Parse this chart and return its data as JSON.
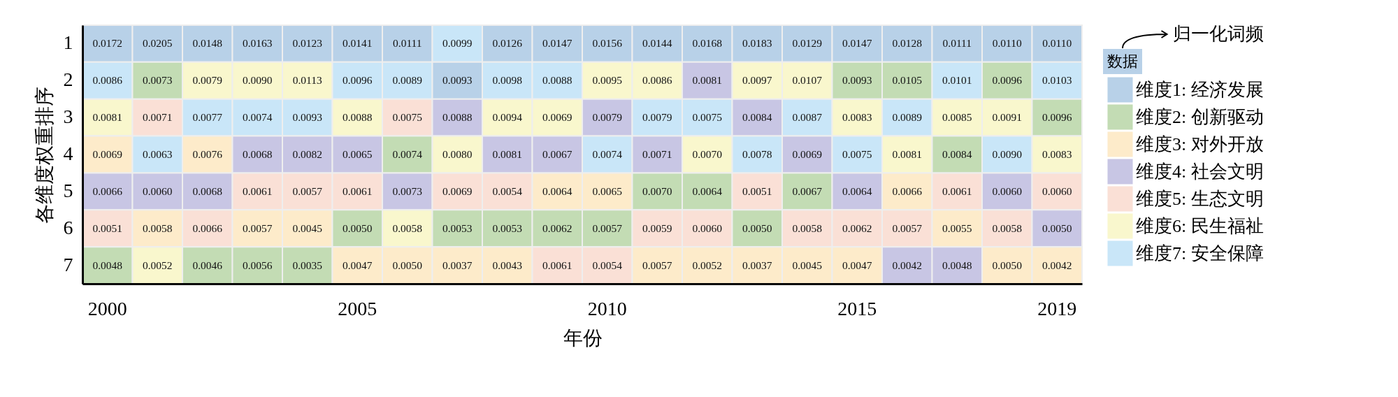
{
  "chart_data": {
    "type": "heatmap",
    "xlabel": "年份",
    "ylabel": "各维度权重排序",
    "legend_title": "归一化词频",
    "legend": "right",
    "data_labels": true,
    "annotations": [
      "数据"
    ],
    "categories": [
      "2000",
      null,
      null,
      null,
      null,
      "2005",
      null,
      null,
      null,
      null,
      "2010",
      null,
      null,
      null,
      null,
      "2015",
      null,
      null,
      null,
      "2019"
    ],
    "y_categories": [
      "1",
      "2",
      "3",
      "4",
      "5",
      "6",
      "7"
    ],
    "series": [
      {
        "name": "维度1: 经济发展",
        "color": "#b8d1e8",
        "values": [
          null,
          null,
          null,
          null,
          null,
          null,
          null,
          null,
          null,
          null,
          null,
          null,
          null,
          null,
          null,
          null,
          null,
          null,
          null,
          null
        ]
      },
      {
        "name": "维度2: 创新驱动",
        "color": "#c3dcb4",
        "values": [
          null,
          null,
          null,
          null,
          null,
          null,
          null,
          null,
          null,
          null,
          null,
          null,
          null,
          null,
          null,
          null,
          null,
          null,
          null,
          null
        ]
      },
      {
        "name": "维度3: 对外开放",
        "color": "#fdebca",
        "values": [
          null,
          null,
          null,
          null,
          null,
          null,
          null,
          null,
          null,
          null,
          null,
          null,
          null,
          null,
          null,
          null,
          null,
          null,
          null,
          null
        ]
      },
      {
        "name": "维度4: 社会文明",
        "color": "#c8c6e4",
        "values": [
          null,
          null,
          null,
          null,
          null,
          null,
          null,
          null,
          null,
          null,
          null,
          null,
          null,
          null,
          null,
          null,
          null,
          null,
          null,
          null
        ]
      },
      {
        "name": "维度5: 生态文明",
        "color": "#fae0d6",
        "values": [
          null,
          null,
          null,
          null,
          null,
          null,
          null,
          null,
          null,
          null,
          null,
          null,
          null,
          null,
          null,
          null,
          null,
          null,
          null,
          null
        ]
      },
      {
        "name": "维度6: 民生福祉",
        "color": "#f9f7cd",
        "values": [
          null,
          null,
          null,
          null,
          null,
          null,
          null,
          null,
          null,
          null,
          null,
          null,
          null,
          null,
          null,
          null,
          null,
          null,
          null,
          null
        ]
      },
      {
        "name": "维度7: 安全保障",
        "color": "#c9e6f8",
        "values": [
          null,
          null,
          null,
          null,
          null,
          null,
          null,
          null,
          null,
          null,
          null,
          null,
          null,
          null,
          null,
          null,
          null,
          null,
          null,
          null
        ]
      }
    ],
    "colors": [
      [
        "#b8d1e8",
        "#b8d1e8",
        "#b8d1e8",
        "#b8d1e8",
        "#b8d1e8",
        "#b8d1e8",
        "#b8d1e8",
        "#c9e6f8",
        "#b8d1e8",
        "#b8d1e8",
        "#b8d1e8",
        "#b8d1e8",
        "#b8d1e8",
        "#b8d1e8",
        "#b8d1e8",
        "#b8d1e8",
        "#b8d1e8",
        "#b8d1e8",
        "#b8d1e8",
        "#b8d1e8"
      ],
      [
        "#c9e6f8",
        "#c3dcb4",
        "#f9f7cd",
        "#f9f7cd",
        "#f9f7cd",
        "#c9e6f8",
        "#c9e6f8",
        "#b8d1e8",
        "#c9e6f8",
        "#c9e6f8",
        "#f9f7cd",
        "#f9f7cd",
        "#c8c6e4",
        "#f9f7cd",
        "#f9f7cd",
        "#c3dcb4",
        "#c3dcb4",
        "#c9e6f8",
        "#c3dcb4",
        "#c9e6f8"
      ],
      [
        "#f9f7cd",
        "#fae0d6",
        "#c9e6f8",
        "#c9e6f8",
        "#c9e6f8",
        "#f9f7cd",
        "#fae0d6",
        "#c8c6e4",
        "#f9f7cd",
        "#f9f7cd",
        "#c8c6e4",
        "#c9e6f8",
        "#c9e6f8",
        "#c8c6e4",
        "#c9e6f8",
        "#f9f7cd",
        "#c9e6f8",
        "#f9f7cd",
        "#f9f7cd",
        "#c3dcb4"
      ],
      [
        "#fdebca",
        "#c9e6f8",
        "#fdebca",
        "#c8c6e4",
        "#c8c6e4",
        "#c8c6e4",
        "#c3dcb4",
        "#f9f7cd",
        "#c8c6e4",
        "#c8c6e4",
        "#c9e6f8",
        "#c8c6e4",
        "#f9f7cd",
        "#c9e6f8",
        "#c8c6e4",
        "#c9e6f8",
        "#f9f7cd",
        "#c3dcb4",
        "#c9e6f8",
        "#f9f7cd"
      ],
      [
        "#c8c6e4",
        "#c8c6e4",
        "#c8c6e4",
        "#fae0d6",
        "#fae0d6",
        "#fae0d6",
        "#c8c6e4",
        "#fae0d6",
        "#fae0d6",
        "#fdebca",
        "#fdebca",
        "#c3dcb4",
        "#c3dcb4",
        "#fae0d6",
        "#c3dcb4",
        "#c8c6e4",
        "#fdebca",
        "#fae0d6",
        "#c8c6e4",
        "#fae0d6"
      ],
      [
        "#fae0d6",
        "#fdebca",
        "#fae0d6",
        "#fdebca",
        "#fdebca",
        "#c3dcb4",
        "#f9f7cd",
        "#c3dcb4",
        "#c3dcb4",
        "#c3dcb4",
        "#c3dcb4",
        "#fae0d6",
        "#fae0d6",
        "#c3dcb4",
        "#fae0d6",
        "#fae0d6",
        "#fae0d6",
        "#fdebca",
        "#fae0d6",
        "#c8c6e4"
      ],
      [
        "#c3dcb4",
        "#f9f7cd",
        "#c3dcb4",
        "#c3dcb4",
        "#c3dcb4",
        "#fdebca",
        "#fdebca",
        "#fdebca",
        "#fdebca",
        "#fae0d6",
        "#fae0d6",
        "#fdebca",
        "#fdebca",
        "#fdebca",
        "#fdebca",
        "#fdebca",
        "#c8c6e4",
        "#c8c6e4",
        "#fdebca",
        "#fdebca"
      ]
    ],
    "cells": [
      [
        0.0172,
        0.0205,
        0.0148,
        0.0163,
        0.0123,
        0.0141,
        0.0111,
        0.0099,
        0.0126,
        0.0147,
        0.0156,
        0.0144,
        0.0168,
        0.0183,
        0.0129,
        0.0147,
        0.0128,
        0.0111,
        0.011,
        0.011
      ],
      [
        0.0086,
        0.0073,
        0.0079,
        0.009,
        0.0113,
        0.0096,
        0.0089,
        0.0093,
        0.0098,
        0.0088,
        0.0095,
        0.0086,
        0.0081,
        0.0097,
        0.0107,
        0.0093,
        0.0105,
        0.0101,
        0.0096,
        0.0103
      ],
      [
        0.0081,
        0.0071,
        0.0077,
        0.0074,
        0.0093,
        0.0088,
        0.0075,
        0.0088,
        0.0094,
        0.0069,
        0.0079,
        0.0079,
        0.0075,
        0.0084,
        0.0087,
        0.0083,
        0.0089,
        0.0085,
        0.0091,
        0.0096
      ],
      [
        0.0069,
        0.0063,
        0.0076,
        0.0068,
        0.0082,
        0.0065,
        0.0074,
        0.008,
        0.0081,
        0.0067,
        0.0074,
        0.0071,
        0.007,
        0.0078,
        0.0069,
        0.0075,
        0.0081,
        0.0084,
        0.009,
        0.0083
      ],
      [
        0.0066,
        0.006,
        0.0068,
        0.0061,
        0.0057,
        0.0061,
        0.0073,
        0.0069,
        0.0054,
        0.0064,
        0.0065,
        0.007,
        0.0064,
        0.0051,
        0.0067,
        0.0064,
        0.0066,
        0.0061,
        0.006,
        0.006
      ],
      [
        0.0051,
        0.0058,
        0.0066,
        0.0057,
        0.0045,
        0.005,
        0.0058,
        0.0053,
        0.0053,
        0.0062,
        0.0057,
        0.0059,
        0.006,
        0.005,
        0.0058,
        0.0062,
        0.0057,
        0.0055,
        0.0058,
        0.005
      ],
      [
        0.0048,
        0.0052,
        0.0046,
        0.0056,
        0.0035,
        0.0047,
        0.005,
        0.0037,
        0.0043,
        0.0061,
        0.0054,
        0.0057,
        0.0052,
        0.0037,
        0.0045,
        0.0047,
        0.0042,
        0.0048,
        0.005,
        0.0042
      ]
    ],
    "cell_labels": [
      [
        "0.0172",
        "0.0205",
        "0.0148",
        "0.0163",
        "0.0123",
        "0.0141",
        "0.0111",
        "0.0099",
        "0.0126",
        "0.0147",
        "0.0156",
        "0.0144",
        "0.0168",
        "0.0183",
        "0.0129",
        "0.0147",
        "0.0128",
        "0.0111",
        "0.0110",
        "0.0110"
      ],
      [
        "0.0086",
        "0.0073",
        "0.0079",
        "0.0090",
        "0.0113",
        "0.0096",
        "0.0089",
        "0.0093",
        "0.0098",
        "0.0088",
        "0.0095",
        "0.0086",
        "0.0081",
        "0.0097",
        "0.0107",
        "0.0093",
        "0.0105",
        "0.0101",
        "0.0096",
        "0.0103"
      ],
      [
        "0.0081",
        "0.0071",
        "0.0077",
        "0.0074",
        "0.0093",
        "0.0088",
        "0.0075",
        "0.0088",
        "0.0094",
        "0.0069",
        "0.0079",
        "0.0079",
        "0.0075",
        "0.0084",
        "0.0087",
        "0.0083",
        "0.0089",
        "0.0085",
        "0.0091",
        "0.0096"
      ],
      [
        "0.0069",
        "0.0063",
        "0.0076",
        "0.0068",
        "0.0082",
        "0.0065",
        "0.0074",
        "0.0080",
        "0.0081",
        "0.0067",
        "0.0074",
        "0.0071",
        "0.0070",
        "0.0078",
        "0.0069",
        "0.0075",
        "0.0081",
        "0.0084",
        "0.0090",
        "0.0083"
      ],
      [
        "0.0066",
        "0.0060",
        "0.0068",
        "0.0061",
        "0.0057",
        "0.0061",
        "0.0073",
        "0.0069",
        "0.0054",
        "0.0064",
        "0.0065",
        "0.0070",
        "0.0064",
        "0.0051",
        "0.0067",
        "0.0064",
        "0.0066",
        "0.0061",
        "0.0060",
        "0.0060"
      ],
      [
        "0.0051",
        "0.0058",
        "0.0066",
        "0.0057",
        "0.0045",
        "0.0050",
        "0.0058",
        "0.0053",
        "0.0053",
        "0.0062",
        "0.0057",
        "0.0059",
        "0.0060",
        "0.0050",
        "0.0058",
        "0.0062",
        "0.0057",
        "0.0055",
        "0.0058",
        "0.0050"
      ],
      [
        "0.0048",
        "0.0052",
        "0.0046",
        "0.0056",
        "0.0035",
        "0.0047",
        "0.0050",
        "0.0037",
        "0.0043",
        "0.0061",
        "0.0054",
        "0.0057",
        "0.0052",
        "0.0037",
        "0.0045",
        "0.0047",
        "0.0042",
        "0.0048",
        "0.0050",
        "0.0042"
      ]
    ]
  }
}
